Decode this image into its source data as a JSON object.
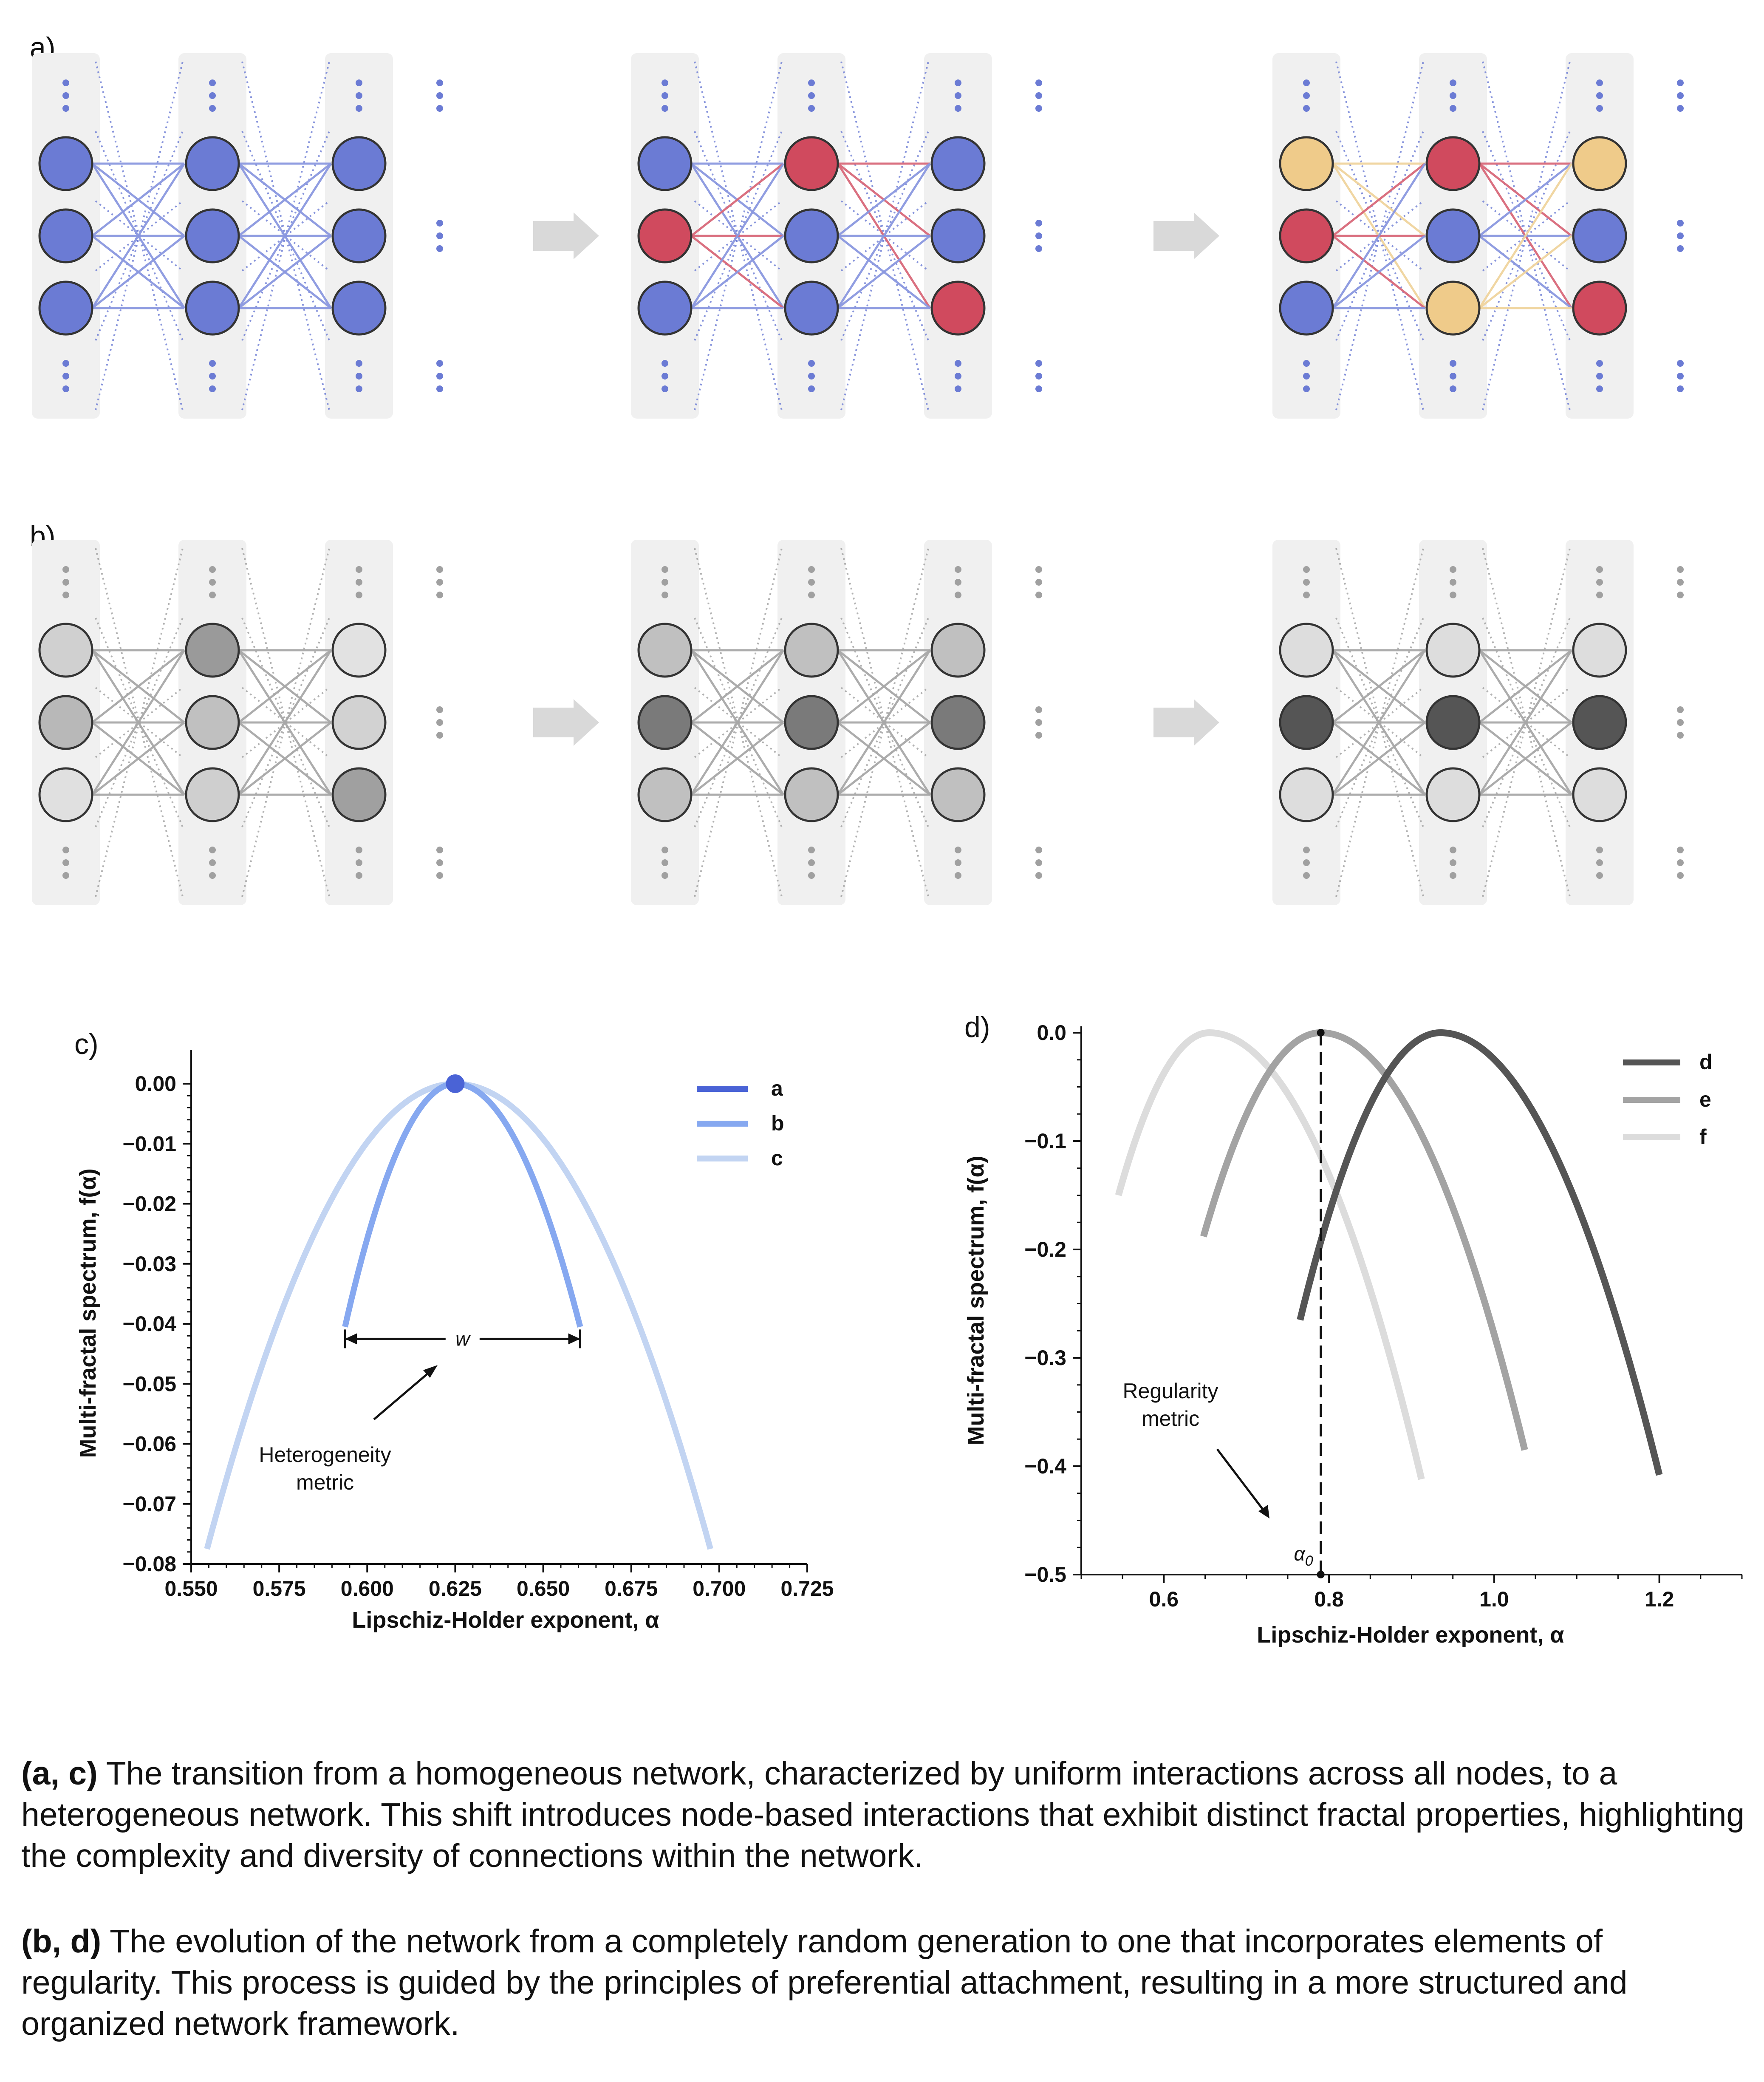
{
  "colors": {
    "blue": "#6b7bd4",
    "red": "#d04a5e",
    "yellow": "#efcb8a",
    "column_bg": "#f0f0f0",
    "arrow_gray": "#d9d9d9",
    "curve_a": "#4a63d6",
    "curve_b": "#86a8f0",
    "curve_c": "#c2d4f2",
    "curve_d": "#555555",
    "curve_e": "#a3a3a3",
    "curve_f": "#dcdcdc"
  },
  "panel_a": {
    "letter": "a)",
    "networks": [
      [
        [
          "blue",
          "blue",
          "blue"
        ],
        [
          "blue",
          "blue",
          "blue"
        ],
        [
          "blue",
          "blue",
          "blue"
        ]
      ],
      [
        [
          "blue",
          "red",
          "blue"
        ],
        [
          "red",
          "blue",
          "blue"
        ],
        [
          "blue",
          "blue",
          "red"
        ]
      ],
      [
        [
          "yellow",
          "red",
          "blue"
        ],
        [
          "red",
          "blue",
          "yellow"
        ],
        [
          "yellow",
          "blue",
          "red"
        ]
      ]
    ]
  },
  "panel_b": {
    "letter": "b)",
    "networks": [
      [
        [
          "#d0d0d0",
          "#b8b8b8",
          "#e0e0e0"
        ],
        [
          "#9a9a9a",
          "#c0c0c0",
          "#cfcfcf"
        ],
        [
          "#e2e2e2",
          "#d2d2d2",
          "#a0a0a0"
        ]
      ],
      [
        [
          "#c0c0c0",
          "#7a7a7a",
          "#c0c0c0"
        ],
        [
          "#c0c0c0",
          "#7a7a7a",
          "#c0c0c0"
        ],
        [
          "#c0c0c0",
          "#7a7a7a",
          "#c0c0c0"
        ]
      ],
      [
        [
          "#dddddd",
          "#555555",
          "#dddddd"
        ],
        [
          "#dddddd",
          "#555555",
          "#dddddd"
        ],
        [
          "#dddddd",
          "#555555",
          "#dddddd"
        ]
      ]
    ]
  },
  "chart_data": [
    {
      "panel": "c)",
      "type": "line",
      "xlabel": "Lipschiz-Holder exponent, α",
      "ylabel": "Multi-fractal spectrum, f(α)",
      "xlim": [
        0.55,
        0.725
      ],
      "ylim": [
        -0.08,
        0.0
      ],
      "xticks": [
        "0.550",
        "0.575",
        "0.600",
        "0.625",
        "0.650",
        "0.675",
        "0.700",
        "0.725"
      ],
      "yticks": [
        "0.00",
        "−0.01",
        "−0.02",
        "−0.03",
        "−0.04",
        "−0.05",
        "−0.06",
        "−0.07",
        "−0.08"
      ],
      "legend_position": "top-right",
      "series": [
        {
          "name": "a",
          "type": "point",
          "x": [
            0.625
          ],
          "y": [
            0.0
          ],
          "color": "#4a63d6"
        },
        {
          "name": "b",
          "vertex": [
            0.625,
            0.0
          ],
          "x_range": [
            0.5937,
            0.6605
          ],
          "y_end": -0.0405,
          "color": "#86a8f0"
        },
        {
          "name": "c",
          "vertex": [
            0.625,
            0.0
          ],
          "x_range": [
            0.5545,
            0.6975
          ],
          "y_end": -0.0775,
          "color": "#c2d4f2"
        }
      ],
      "annotations": {
        "width_label": "w",
        "width_x": [
          0.5937,
          0.6605
        ],
        "width_y": -0.0425,
        "metric_label": [
          "Heterogeneity",
          "metric"
        ]
      }
    },
    {
      "panel": "d)",
      "type": "line",
      "xlabel": "Lipschiz-Holder exponent, α",
      "ylabel": "Multi-fractal spectrum, f(α)",
      "xlim": [
        0.5,
        1.3
      ],
      "ylim": [
        -0.5,
        0.0
      ],
      "xticks": [
        "0.6",
        "0.8",
        "1.0",
        "1.2"
      ],
      "yticks": [
        "0.0",
        "−0.1",
        "−0.2",
        "−0.3",
        "−0.4",
        "−0.5"
      ],
      "legend_position": "top-right",
      "series": [
        {
          "name": "d",
          "vertex": [
            0.935,
            0.0
          ],
          "x_range": [
            0.765,
            1.2
          ],
          "y_end_left": -0.265,
          "y_end_right": -0.408,
          "color": "#555555"
        },
        {
          "name": "e",
          "vertex": [
            0.79,
            0.0
          ],
          "x_range": [
            0.648,
            1.037
          ],
          "y_end_left": -0.188,
          "y_end_right": -0.385,
          "color": "#a3a3a3"
        },
        {
          "name": "f",
          "vertex": [
            0.655,
            0.0
          ],
          "x_range": [
            0.545,
            0.912
          ],
          "y_end_left": -0.15,
          "y_end_right": -0.412,
          "color": "#dcdcdc"
        }
      ],
      "annotations": {
        "alpha0_label": "α",
        "alpha0_sub": "0",
        "alpha0_x": 0.79,
        "metric_label": [
          "Regularity",
          "metric"
        ]
      }
    }
  ],
  "caption": {
    "p1_bold": "(a, c)",
    "p1_text": " The transition from a homogeneous network, characterized by uniform interactions across all nodes, to a heterogeneous network. This shift introduces node-based interactions that exhibit distinct fractal properties, highlighting the complexity and diversity of connections within the network.",
    "p2_bold": "(b, d)",
    "p2_text": " The evolution of the network from a completely random generation to one that incorporates elements of regularity. This process is guided by the principles of preferential attachment, resulting in a more structured and organized network framework."
  }
}
